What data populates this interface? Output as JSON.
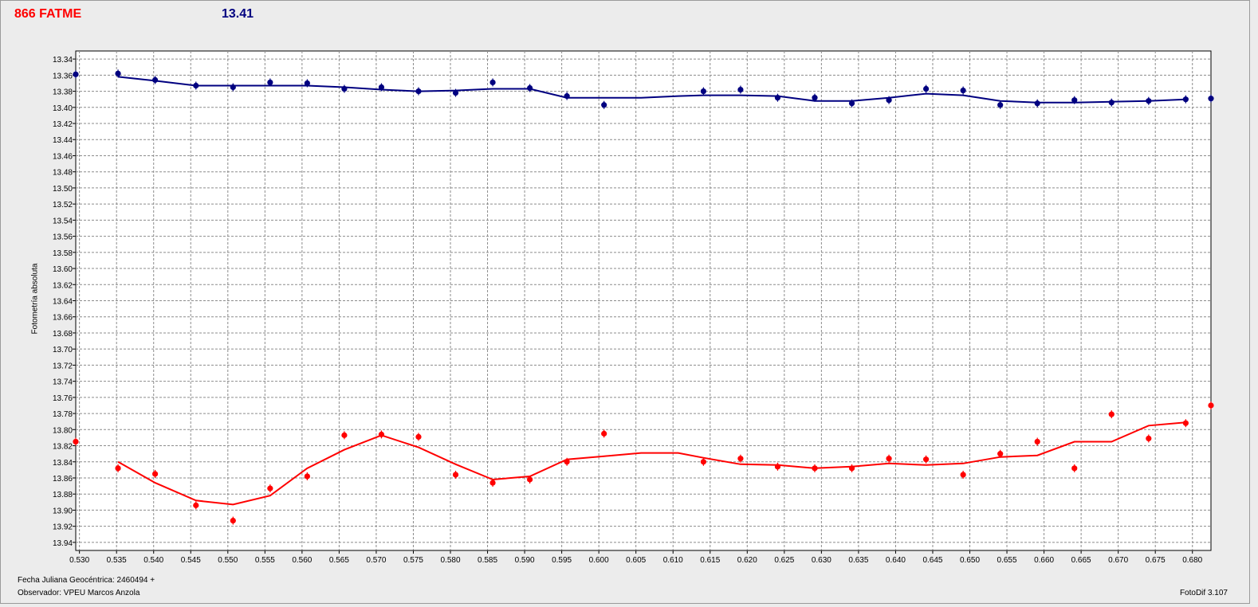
{
  "header": {
    "object_name": "866 FATME",
    "magnitude": "13.41"
  },
  "footer": {
    "jd_label": "Fecha Juliana Geocéntrica: 2460494 +",
    "observer": "Observador: VPEU Marcos Anzola",
    "version": "FotoDif 3.107"
  },
  "chart_data": {
    "type": "line",
    "ylabel": "Fotometría absoluta",
    "xlim": [
      0.5295,
      0.6825
    ],
    "ylim": [
      13.33,
      13.95
    ],
    "y_inverted": true,
    "grid": true,
    "x_ticks": [
      "0.530",
      "0.535",
      "0.540",
      "0.545",
      "0.550",
      "0.555",
      "0.560",
      "0.565",
      "0.570",
      "0.575",
      "0.580",
      "0.585",
      "0.590",
      "0.595",
      "0.600",
      "0.605",
      "0.610",
      "0.615",
      "0.620",
      "0.625",
      "0.630",
      "0.635",
      "0.640",
      "0.645",
      "0.650",
      "0.655",
      "0.660",
      "0.665",
      "0.670",
      "0.675",
      "0.680"
    ],
    "y_ticks": [
      "13.34",
      "13.36",
      "13.38",
      "13.40",
      "13.42",
      "13.44",
      "13.46",
      "13.48",
      "13.50",
      "13.52",
      "13.54",
      "13.56",
      "13.58",
      "13.60",
      "13.62",
      "13.64",
      "13.66",
      "13.68",
      "13.70",
      "13.72",
      "13.74",
      "13.76",
      "13.78",
      "13.80",
      "13.82",
      "13.84",
      "13.86",
      "13.88",
      "13.90",
      "13.92",
      "13.94"
    ],
    "colors": {
      "comparison": "#000080",
      "target": "#ff0000"
    },
    "series": [
      {
        "points": [
          [
            0.5295,
            13.359
          ],
          [
            0.5352,
            13.358
          ],
          [
            0.5402,
            13.366
          ],
          [
            0.5457,
            13.373
          ],
          [
            0.5507,
            13.375
          ],
          [
            0.5557,
            13.369
          ],
          [
            0.5607,
            13.37
          ],
          [
            0.5657,
            13.377
          ],
          [
            0.5707,
            13.375
          ],
          [
            0.5757,
            13.38
          ],
          [
            0.5807,
            13.382
          ],
          [
            0.5857,
            13.369
          ],
          [
            0.5907,
            13.376
          ],
          [
            0.5957,
            13.386
          ],
          [
            0.6007,
            13.397
          ],
          [
            0.6141,
            13.38
          ],
          [
            0.6191,
            13.378
          ],
          [
            0.6241,
            13.388
          ],
          [
            0.6291,
            13.388
          ],
          [
            0.6341,
            13.395
          ],
          [
            0.6391,
            13.391
          ],
          [
            0.6441,
            13.377
          ],
          [
            0.6491,
            13.379
          ],
          [
            0.6541,
            13.397
          ],
          [
            0.6591,
            13.395
          ],
          [
            0.6641,
            13.391
          ],
          [
            0.6691,
            13.394
          ],
          [
            0.6741,
            13.392
          ],
          [
            0.6791,
            13.39
          ],
          [
            0.6825,
            13.389
          ]
        ],
        "line": [
          [
            0.5352,
            13.362
          ],
          [
            0.5402,
            13.367
          ],
          [
            0.5457,
            13.373
          ],
          [
            0.5507,
            13.373
          ],
          [
            0.5557,
            13.373
          ],
          [
            0.5607,
            13.373
          ],
          [
            0.5657,
            13.375
          ],
          [
            0.5707,
            13.378
          ],
          [
            0.5757,
            13.38
          ],
          [
            0.5807,
            13.379
          ],
          [
            0.5857,
            13.377
          ],
          [
            0.5907,
            13.377
          ],
          [
            0.5957,
            13.388
          ],
          [
            0.6007,
            13.388
          ],
          [
            0.6057,
            13.388
          ],
          [
            0.6107,
            13.386
          ],
          [
            0.6141,
            13.385
          ],
          [
            0.6191,
            13.385
          ],
          [
            0.6241,
            13.386
          ],
          [
            0.6291,
            13.392
          ],
          [
            0.6341,
            13.392
          ],
          [
            0.6391,
            13.388
          ],
          [
            0.6441,
            13.383
          ],
          [
            0.6491,
            13.385
          ],
          [
            0.6541,
            13.392
          ],
          [
            0.6591,
            13.394
          ],
          [
            0.6641,
            13.394
          ],
          [
            0.6691,
            13.393
          ],
          [
            0.6741,
            13.392
          ],
          [
            0.6791,
            13.39
          ]
        ]
      },
      {
        "points": [
          [
            0.5295,
            13.815
          ],
          [
            0.5352,
            13.848
          ],
          [
            0.5402,
            13.855
          ],
          [
            0.5457,
            13.894
          ],
          [
            0.5507,
            13.913
          ],
          [
            0.5557,
            13.873
          ],
          [
            0.5607,
            13.858
          ],
          [
            0.5657,
            13.807
          ],
          [
            0.5707,
            13.806
          ],
          [
            0.5757,
            13.809
          ],
          [
            0.5807,
            13.856
          ],
          [
            0.5857,
            13.866
          ],
          [
            0.5907,
            13.862
          ],
          [
            0.5957,
            13.84
          ],
          [
            0.6007,
            13.805
          ],
          [
            0.6141,
            13.84
          ],
          [
            0.6191,
            13.836
          ],
          [
            0.6241,
            13.846
          ],
          [
            0.6291,
            13.848
          ],
          [
            0.6341,
            13.848
          ],
          [
            0.6391,
            13.836
          ],
          [
            0.6441,
            13.837
          ],
          [
            0.6491,
            13.856
          ],
          [
            0.6541,
            13.83
          ],
          [
            0.6591,
            13.815
          ],
          [
            0.6641,
            13.848
          ],
          [
            0.6691,
            13.781
          ],
          [
            0.6741,
            13.811
          ],
          [
            0.6791,
            13.792
          ],
          [
            0.6825,
            13.77
          ]
        ],
        "line": [
          [
            0.5352,
            13.84
          ],
          [
            0.5402,
            13.866
          ],
          [
            0.5457,
            13.888
          ],
          [
            0.5507,
            13.893
          ],
          [
            0.5557,
            13.882
          ],
          [
            0.5607,
            13.848
          ],
          [
            0.5657,
            13.825
          ],
          [
            0.5707,
            13.807
          ],
          [
            0.5757,
            13.822
          ],
          [
            0.5807,
            13.843
          ],
          [
            0.5857,
            13.862
          ],
          [
            0.5907,
            13.858
          ],
          [
            0.5957,
            13.837
          ],
          [
            0.6007,
            13.833
          ],
          [
            0.6057,
            13.829
          ],
          [
            0.6107,
            13.829
          ],
          [
            0.6141,
            13.835
          ],
          [
            0.6191,
            13.843
          ],
          [
            0.6241,
            13.844
          ],
          [
            0.6291,
            13.848
          ],
          [
            0.6341,
            13.846
          ],
          [
            0.6391,
            13.842
          ],
          [
            0.6441,
            13.844
          ],
          [
            0.6491,
            13.842
          ],
          [
            0.6541,
            13.834
          ],
          [
            0.6591,
            13.832
          ],
          [
            0.6641,
            13.815
          ],
          [
            0.6691,
            13.815
          ],
          [
            0.6741,
            13.795
          ],
          [
            0.6791,
            13.791
          ]
        ]
      }
    ]
  }
}
